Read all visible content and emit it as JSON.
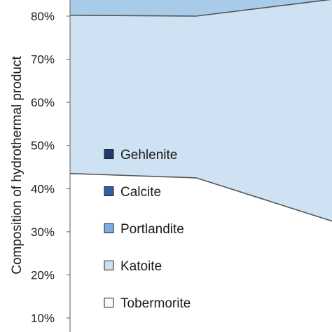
{
  "chart_data": {
    "type": "area",
    "ylabel": "Composition of hydrothermal product",
    "ylim": [
      10,
      84
    ],
    "ytick_values": [
      10,
      20,
      30,
      40,
      50,
      60,
      70,
      80
    ],
    "yticks": [
      "10%",
      "20%",
      "30%",
      "40%",
      "50%",
      "60%",
      "70%",
      "80%"
    ],
    "x": [
      0,
      1,
      2
    ],
    "series_order_bottom_to_top": [
      "Tobermorite",
      "Katoite",
      "Portlandite",
      "Calcite",
      "Gehlenite"
    ],
    "boundaries": [
      {
        "upper_of": "Tobermorite",
        "values": [
          43.5,
          42.5,
          33.2
        ]
      },
      {
        "upper_of": "Katoite",
        "values": [
          80.2,
          80.0,
          83.6
        ]
      }
    ],
    "legend": {
      "position": "left-inside",
      "items": [
        {
          "name": "Gehlenite",
          "color": "#1f3a6e"
        },
        {
          "name": "Calcite",
          "color": "#2e5fa8"
        },
        {
          "name": "Portlandite",
          "color": "#7aaee0"
        },
        {
          "name": "Katoite",
          "color": "#cde0f3"
        },
        {
          "name": "Tobermorite",
          "color": "#f7fbff"
        }
      ]
    },
    "colors": {
      "tobermorite_fill": "#ffffff",
      "katoite_fill": "#cfe2f3",
      "top_band_fill": "#a9cbea",
      "line": "#555555",
      "axis": "#777777"
    }
  }
}
